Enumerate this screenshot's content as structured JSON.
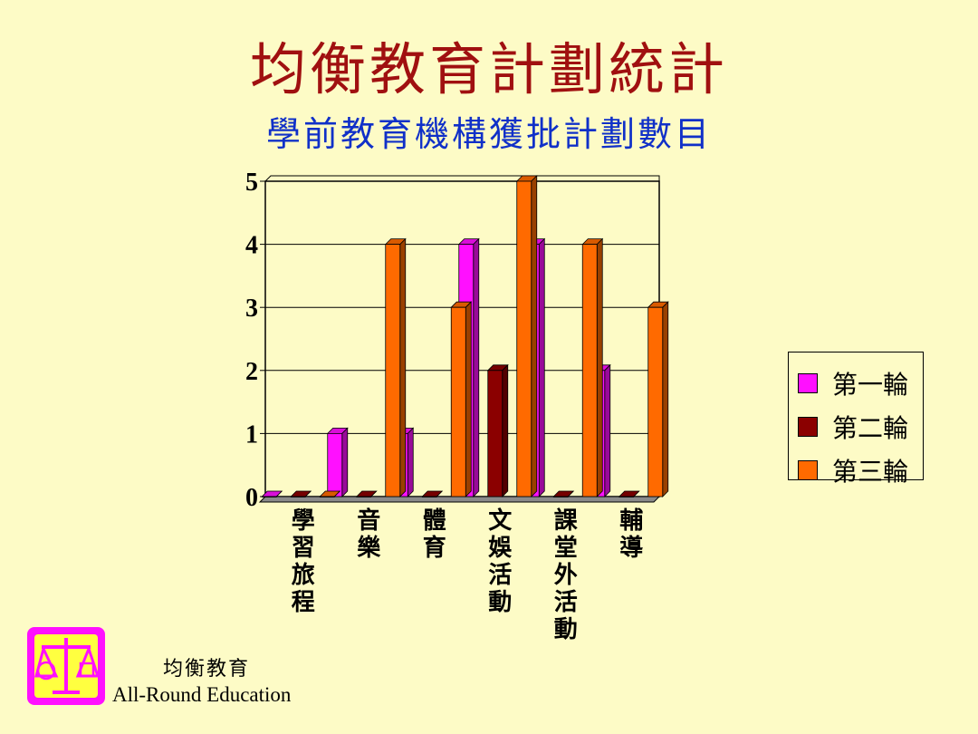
{
  "title": "均衡教育計劃統計",
  "subtitle": "學前教育機構獲批計劃數目",
  "footer": {
    "cn": "均衡教育",
    "en": "All-Round Education"
  },
  "colors": {
    "background": "#fdfbc6",
    "title": "#a01010",
    "subtitle": "#1030c8"
  },
  "chart_data": {
    "type": "bar",
    "categories": [
      "學習旅程",
      "音樂",
      "體育",
      "文娛活動",
      "課堂外活動",
      "輔導"
    ],
    "series": [
      {
        "name": "第一輪",
        "color": "#ff10ff",
        "values": [
          0,
          1,
          1,
          4,
          4,
          2
        ]
      },
      {
        "name": "第二輪",
        "color": "#8b0000",
        "values": [
          0,
          0,
          0,
          2,
          0,
          0
        ]
      },
      {
        "name": "第三輪",
        "color": "#ff6a00",
        "values": [
          0,
          4,
          3,
          5,
          4,
          3
        ]
      }
    ],
    "yticks": [
      "0",
      "1",
      "2",
      "3",
      "4",
      "5"
    ],
    "ylim": [
      0,
      5
    ],
    "grid": true,
    "legend": "right"
  }
}
